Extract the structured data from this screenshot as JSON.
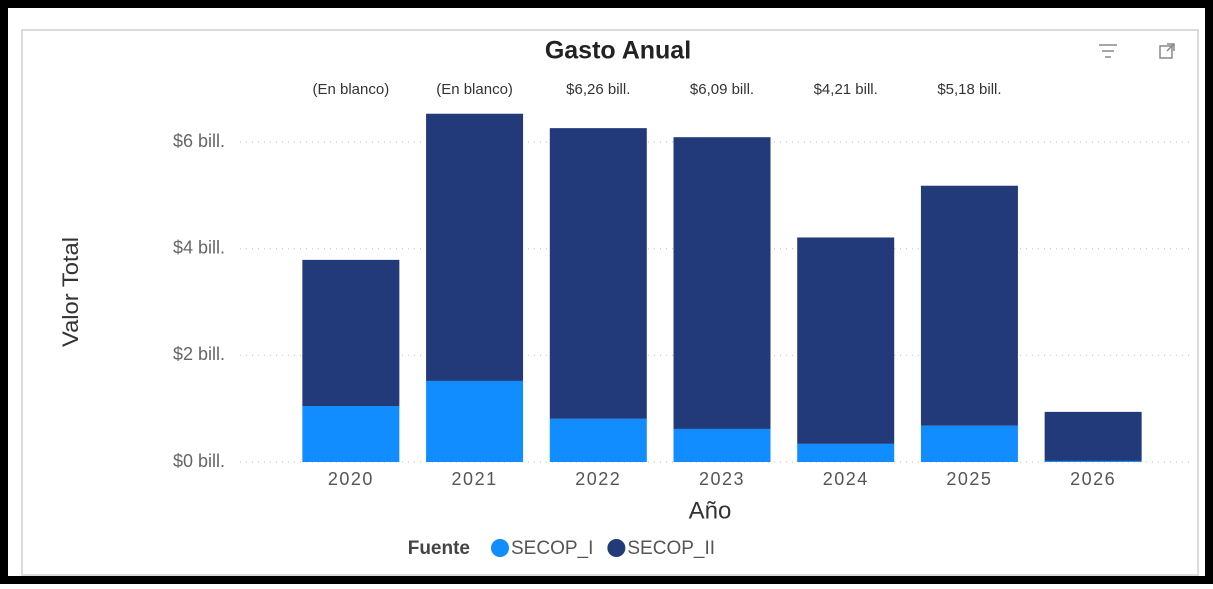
{
  "chart_data": {
    "type": "stacked_bar",
    "title": "Gasto Anual",
    "x_label": "Año",
    "y_label": "Valor Total",
    "legend_title": "Fuente",
    "categories": [
      "2020",
      "2021",
      "2022",
      "2023",
      "2024",
      "2025",
      "2026"
    ],
    "series": [
      {
        "name": "SECOP_I",
        "color": "#118dff",
        "values": [
          1.05,
          1.52,
          0.81,
          0.62,
          0.34,
          0.68,
          0.02
        ]
      },
      {
        "name": "SECOP_II",
        "color": "#223a7a",
        "values": [
          2.74,
          5.01,
          5.45,
          5.47,
          3.87,
          4.5,
          0.92
        ]
      }
    ],
    "total_labels": [
      "(En blanco)",
      "(En blanco)",
      "$6,26 bill.",
      "$6,09 bill.",
      "$4,21 bill.",
      "$5,18 bill.",
      null
    ],
    "ylim": [
      0,
      6.6
    ],
    "yticks": [
      {
        "value": 0,
        "label": "$0 bill."
      },
      {
        "value": 2,
        "label": "$2 bill."
      },
      {
        "value": 4,
        "label": "$4 bill."
      },
      {
        "value": 6,
        "label": "$6 bill."
      }
    ],
    "grid": true
  }
}
